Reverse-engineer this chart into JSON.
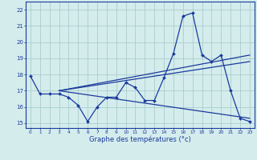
{
  "title": "Graphe des températures (°c)",
  "x_hours": [
    0,
    1,
    2,
    3,
    4,
    5,
    6,
    7,
    8,
    9,
    10,
    11,
    12,
    13,
    14,
    15,
    16,
    17,
    18,
    19,
    20,
    21,
    22,
    23
  ],
  "temp_main": [
    17.9,
    16.8,
    16.8,
    16.8,
    16.6,
    16.1,
    15.1,
    16.0,
    16.6,
    16.6,
    17.5,
    17.2,
    16.4,
    16.4,
    17.8,
    19.3,
    21.6,
    21.8,
    19.2,
    18.8,
    19.2,
    17.0,
    15.3,
    15.1
  ],
  "trend1_x": [
    3,
    23
  ],
  "trend1_y": [
    17.0,
    19.2
  ],
  "trend2_x": [
    3,
    23
  ],
  "trend2_y": [
    17.0,
    18.8
  ],
  "trend3_x": [
    3,
    23
  ],
  "trend3_y": [
    17.0,
    15.3
  ],
  "line_color": "#1a3a9c",
  "bg_color": "#d4ecec",
  "grid_color": "#aacece",
  "ylabel_values": [
    15,
    16,
    17,
    18,
    19,
    20,
    21,
    22
  ],
  "xlabel_values": [
    0,
    1,
    2,
    3,
    4,
    5,
    6,
    7,
    8,
    9,
    10,
    11,
    12,
    13,
    14,
    15,
    16,
    17,
    18,
    19,
    20,
    21,
    22,
    23
  ],
  "ylim": [
    14.7,
    22.5
  ],
  "xlim": [
    -0.5,
    23.5
  ]
}
